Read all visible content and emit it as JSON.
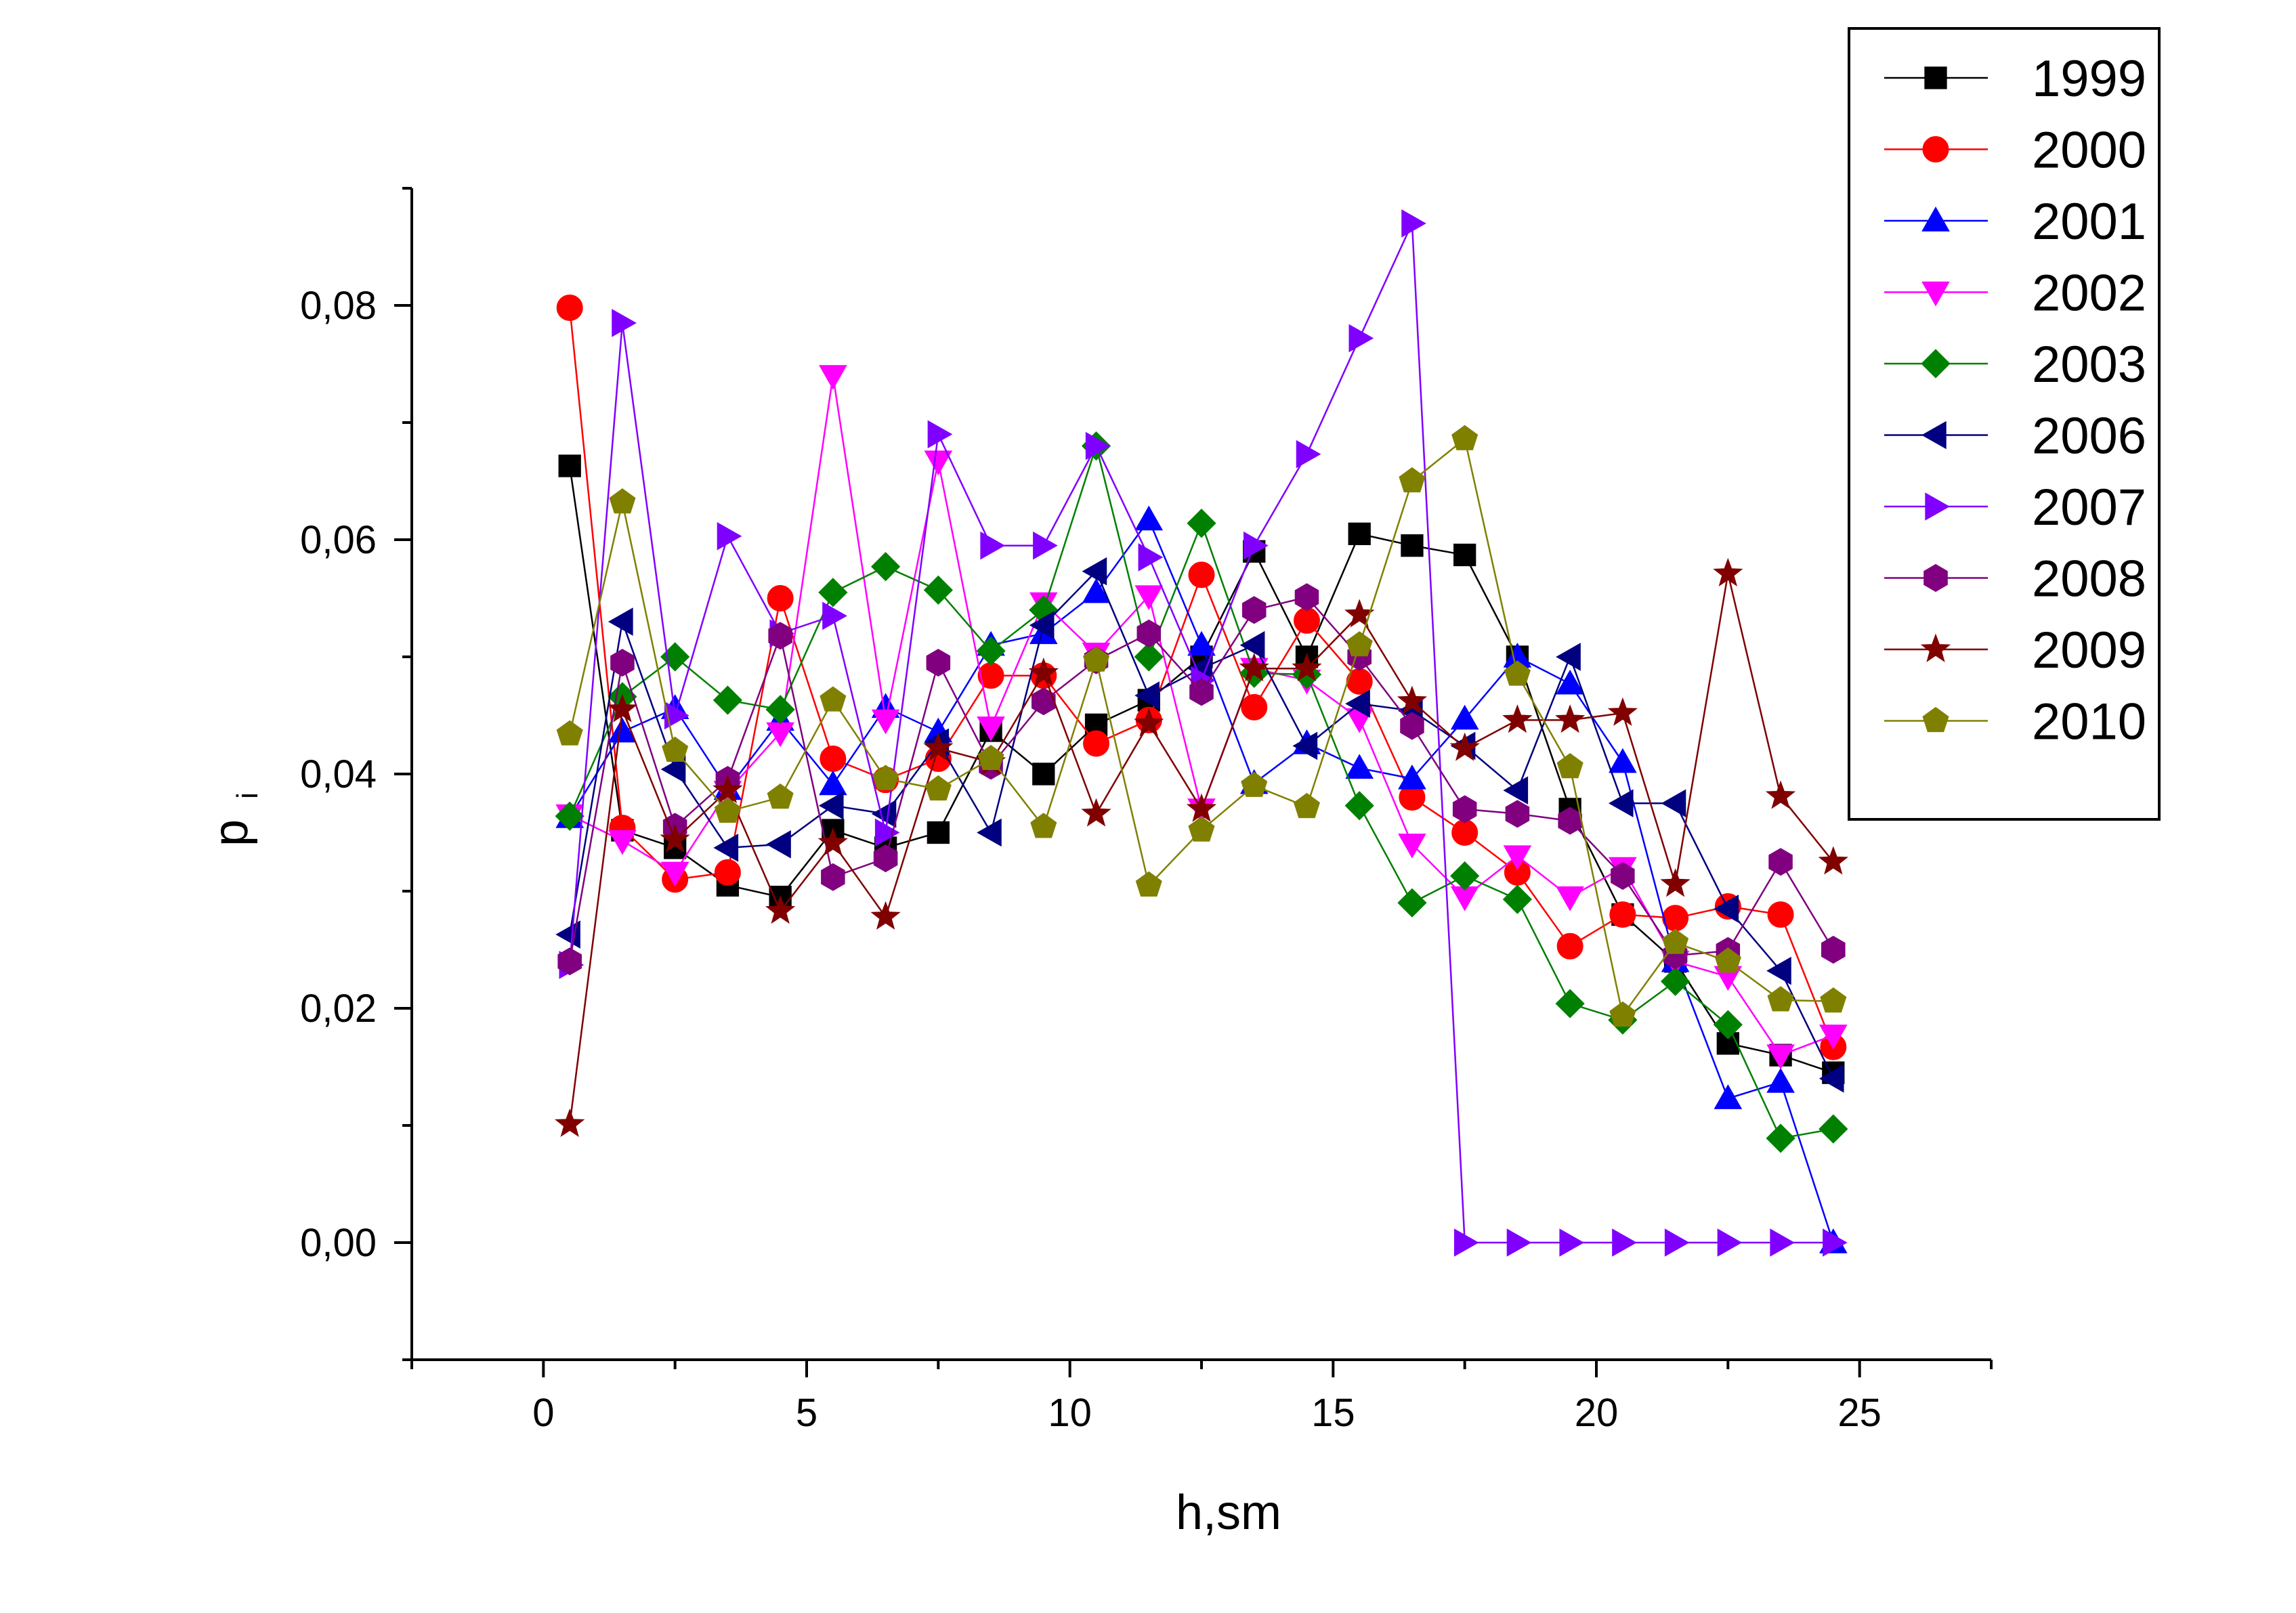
{
  "chart_data": {
    "type": "line",
    "title": "",
    "xlabel": "h,sm",
    "ylabel": "p",
    "ylabel_sub": "i",
    "xlim": [
      -2.5,
      27.5
    ],
    "ylim": [
      -0.01,
      0.09
    ],
    "x_ticks": [
      0,
      5,
      10,
      15,
      20,
      25
    ],
    "x_tick_labels": [
      "0",
      "5",
      "10",
      "15",
      "20",
      "25"
    ],
    "y_ticks": [
      0.0,
      0.02,
      0.04,
      0.06,
      0.08
    ],
    "y_tick_labels": [
      "0,00",
      "0,02",
      "0,04",
      "0,06",
      "0,08"
    ],
    "grid": false,
    "legend_position": "top-right-outside",
    "x": [
      0.5,
      1.5,
      2.5,
      3.5,
      4.5,
      5.5,
      6.5,
      7.5,
      8.5,
      9.5,
      10.5,
      11.5,
      12.5,
      13.5,
      14.5,
      15.5,
      16.5,
      17.5,
      18.5,
      19.5,
      20.5,
      21.5,
      22.5,
      23.5,
      24.5
    ],
    "series": [
      {
        "name": "1999",
        "color": "#000000",
        "marker": "square",
        "values": [
          0.0663,
          0.0352,
          0.0337,
          0.0305,
          0.0295,
          0.0352,
          0.0337,
          0.035,
          0.0437,
          0.04,
          0.0442,
          0.0463,
          0.05,
          0.059,
          0.05,
          0.0605,
          0.0595,
          0.0587,
          0.05,
          0.037,
          0.028,
          0.024,
          0.017,
          0.016,
          0.0145
        ]
      },
      {
        "name": "2000",
        "color": "#ff0000",
        "marker": "circle",
        "values": [
          0.0798,
          0.0354,
          0.031,
          0.0316,
          0.055,
          0.0413,
          0.0395,
          0.0413,
          0.0484,
          0.0484,
          0.0426,
          0.0446,
          0.057,
          0.0457,
          0.0531,
          0.0479,
          0.038,
          0.035,
          0.0316,
          0.0253,
          0.028,
          0.0277,
          0.0287,
          0.028,
          0.0167
        ]
      },
      {
        "name": "2001",
        "color": "#0000ff",
        "marker": "triangle-up",
        "values": [
          0.0363,
          0.0436,
          0.0456,
          0.0387,
          0.0446,
          0.0391,
          0.0457,
          0.0436,
          0.051,
          0.052,
          0.0555,
          0.0617,
          0.051,
          0.0392,
          0.0426,
          0.0405,
          0.0396,
          0.0447,
          0.05,
          0.0477,
          0.041,
          0.024,
          0.0123,
          0.0137,
          0.0
        ]
      },
      {
        "name": "2002",
        "color": "#ff00ff",
        "marker": "triangle-down",
        "values": [
          0.0365,
          0.0343,
          0.0316,
          0.0385,
          0.0435,
          0.074,
          0.0446,
          0.0667,
          0.044,
          0.0546,
          0.0503,
          0.0552,
          0.037,
          0.049,
          0.048,
          0.0447,
          0.034,
          0.0295,
          0.033,
          0.0295,
          0.032,
          0.024,
          0.0227,
          0.016,
          0.0177
        ]
      },
      {
        "name": "2003",
        "color": "#008000",
        "marker": "diamond",
        "values": [
          0.0364,
          0.0466,
          0.05,
          0.0463,
          0.0455,
          0.0555,
          0.0577,
          0.0557,
          0.0505,
          0.054,
          0.068,
          0.05,
          0.0614,
          0.0486,
          0.0485,
          0.0373,
          0.029,
          0.0313,
          0.0293,
          0.0204,
          0.019,
          0.0223,
          0.0186,
          0.0089,
          0.0097
        ]
      },
      {
        "name": "2006",
        "color": "#000080",
        "marker": "triangle-left",
        "values": [
          0.0263,
          0.053,
          0.0404,
          0.0337,
          0.034,
          0.0373,
          0.0366,
          0.0427,
          0.035,
          0.0527,
          0.0573,
          0.0467,
          0.049,
          0.051,
          0.0424,
          0.046,
          0.0454,
          0.0424,
          0.0386,
          0.05,
          0.0375,
          0.0375,
          0.0285,
          0.0232,
          0.014
        ]
      },
      {
        "name": "2007",
        "color": "#8000ff",
        "marker": "triangle-right",
        "values": [
          0.0237,
          0.0785,
          0.045,
          0.0603,
          0.052,
          0.0535,
          0.035,
          0.069,
          0.0595,
          0.0595,
          0.068,
          0.0585,
          0.048,
          0.0595,
          0.0673,
          0.0772,
          0.087,
          0.0,
          0.0,
          0.0,
          0.0,
          0.0,
          0.0,
          0.0,
          0.0
        ]
      },
      {
        "name": "2008",
        "color": "#800080",
        "marker": "hexagon",
        "values": [
          0.024,
          0.0495,
          0.0355,
          0.0395,
          0.0518,
          0.0312,
          0.0328,
          0.0495,
          0.0407,
          0.0462,
          0.0497,
          0.052,
          0.047,
          0.054,
          0.0551,
          0.05,
          0.0441,
          0.037,
          0.0366,
          0.036,
          0.0313,
          0.0245,
          0.0249,
          0.0325,
          0.025
        ]
      },
      {
        "name": "2009",
        "color": "#800000",
        "marker": "star",
        "values": [
          0.0101,
          0.0455,
          0.0344,
          0.0386,
          0.0283,
          0.0341,
          0.0278,
          0.0422,
          0.041,
          0.0486,
          0.0366,
          0.0443,
          0.037,
          0.049,
          0.049,
          0.0536,
          0.0462,
          0.0422,
          0.0446,
          0.0446,
          0.0452,
          0.0306,
          0.0571,
          0.0381,
          0.0325
        ]
      },
      {
        "name": "2010",
        "color": "#808000",
        "marker": "pentagon",
        "values": [
          0.0434,
          0.0632,
          0.042,
          0.0368,
          0.038,
          0.0463,
          0.0396,
          0.0387,
          0.0413,
          0.0355,
          0.0497,
          0.0305,
          0.0352,
          0.039,
          0.0372,
          0.051,
          0.065,
          0.0686,
          0.0485,
          0.0406,
          0.0194,
          0.0256,
          0.024,
          0.0207,
          0.0206
        ]
      }
    ]
  }
}
